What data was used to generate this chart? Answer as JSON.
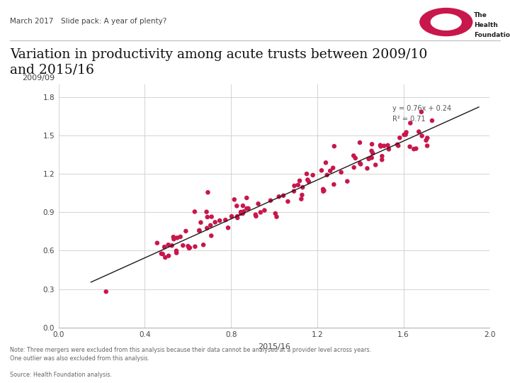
{
  "title_line1": "Variation in productivity among acute trusts between 2009/10",
  "title_line2": "and 2015/16",
  "header_left": "March 2017",
  "header_right": "Slide pack: A year of plenty?",
  "xlabel": "2015/16",
  "ylabel": "2009/09",
  "xlim": [
    0.0,
    2.0
  ],
  "ylim": [
    0.0,
    1.9
  ],
  "xticks": [
    0.0,
    0.4,
    0.8,
    1.2,
    1.6,
    2.0
  ],
  "yticks": [
    0.0,
    0.3,
    0.6,
    0.9,
    1.2,
    1.5,
    1.8
  ],
  "equation_text": "y = 0.76x + 0.24\nR² = 0.71",
  "slope": 0.76,
  "intercept": 0.24,
  "dot_color": "#C8174B",
  "line_color": "#1a1a1a",
  "note_text": "Note: Three mergers were excluded from this analysis because their data cannot be analysed at a provider level across years.\nOne outlier was also excluded from this analysis.",
  "source_text": "Source: Health Foundation analysis.",
  "rand_seed": 42,
  "n_points": 120,
  "x_min_scatter": 0.45,
  "x_max_scatter": 1.75,
  "noise_std": 0.075
}
